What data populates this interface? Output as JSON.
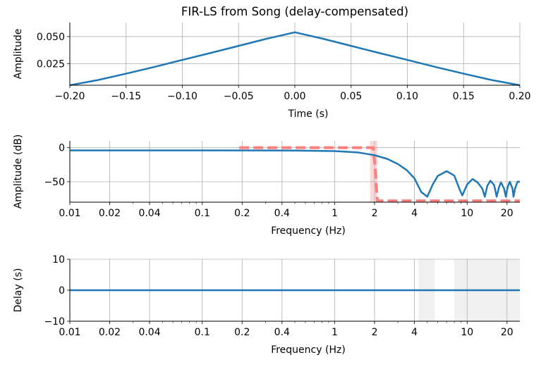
{
  "figure": {
    "title": "FIR-LS from Song (delay-compensated)"
  },
  "colors": {
    "line": "#1f77b4",
    "ideal": "#ff7f7f",
    "grid": "#b0b0b0",
    "shade": "#f0f0f0",
    "shade_pink": "#f8d8d8"
  },
  "chart_data": [
    {
      "type": "line",
      "id": "impulse",
      "xlabel": "Time (s)",
      "ylabel": "Amplitude",
      "xlim": [
        -0.2,
        0.2
      ],
      "ylim": [
        0.005,
        0.063
      ],
      "xticks": [
        -0.2,
        -0.15,
        -0.1,
        -0.05,
        0.0,
        0.05,
        0.1,
        0.15,
        0.2
      ],
      "xtick_labels": [
        "−0.20",
        "−0.15",
        "−0.10",
        "−0.05",
        "0.00",
        "0.05",
        "0.10",
        "0.15",
        "0.20"
      ],
      "yticks": [
        0.025,
        0.05
      ],
      "ytick_labels": [
        "0.025",
        "0.050"
      ],
      "grid": true,
      "series": [
        {
          "x": [
            -0.2,
            -0.175,
            -0.15,
            -0.125,
            -0.1,
            -0.075,
            -0.05,
            -0.025,
            0.0,
            0.025,
            0.05,
            0.075,
            0.1,
            0.125,
            0.15,
            0.175,
            0.2
          ],
          "y": [
            0.0045,
            0.0098,
            0.0157,
            0.0219,
            0.0284,
            0.0348,
            0.0414,
            0.048,
            0.054,
            0.048,
            0.0414,
            0.0348,
            0.0284,
            0.0219,
            0.0157,
            0.0098,
            0.0045
          ]
        }
      ]
    },
    {
      "type": "line",
      "id": "magnitude",
      "xlabel": "Frequency (Hz)",
      "ylabel": "Amplitude (dB)",
      "xscale": "log",
      "xlim": [
        0.01,
        25
      ],
      "ylim": [
        -80,
        10
      ],
      "xticks": [
        0.01,
        0.02,
        0.04,
        0.1,
        0.2,
        0.4,
        1,
        2,
        4,
        10,
        20
      ],
      "xtick_labels": [
        "0.01",
        "0.02",
        "0.04",
        "0.1",
        "0.2",
        "0.4",
        "1",
        "2",
        "4",
        "10",
        "20"
      ],
      "yticks": [
        -50,
        0
      ],
      "ytick_labels": [
        "−50",
        "0"
      ],
      "grid": true,
      "shaded_band_x": [
        1.85,
        2.1
      ],
      "ideal_response": {
        "x": [
          0.19,
          1.95,
          2.0,
          2.1,
          2.5,
          25
        ],
        "y": [
          0,
          0,
          -20,
          -78,
          -78,
          -78
        ]
      },
      "series": [
        {
          "x": [
            0.01,
            0.1,
            0.5,
            1.0,
            1.5,
            2.0,
            2.5,
            3.0,
            3.5,
            4.0,
            4.5,
            5.0,
            5.5,
            6.0,
            7.0,
            8.0,
            8.8,
            9.2,
            10,
            11,
            12,
            13,
            13.6,
            14.2,
            15,
            16,
            16.7,
            17.4,
            18,
            19,
            19.6,
            20.2,
            21,
            22,
            22.4,
            23,
            24,
            25
          ],
          "y": [
            -4,
            -4,
            -4.2,
            -5,
            -7,
            -11,
            -16.5,
            -24,
            -33,
            -45,
            -65,
            -72,
            -54,
            -41.5,
            -34.5,
            -41,
            -62,
            -70,
            -54,
            -46,
            -51,
            -60,
            -72,
            -56,
            -48.5,
            -55,
            -72,
            -58,
            -51,
            -60,
            -72,
            -58,
            -50,
            -60,
            -72,
            -60,
            -50,
            -50
          ]
        }
      ]
    },
    {
      "type": "line",
      "id": "delay",
      "xlabel": "Frequency (Hz)",
      "ylabel": "Delay (s)",
      "xscale": "log",
      "xlim": [
        0.01,
        25
      ],
      "ylim": [
        -10,
        10
      ],
      "xticks": [
        0.01,
        0.02,
        0.04,
        0.1,
        0.2,
        0.4,
        1,
        2,
        4,
        10,
        20
      ],
      "xtick_labels": [
        "0.01",
        "0.02",
        "0.04",
        "0.1",
        "0.2",
        "0.4",
        "1",
        "2",
        "4",
        "10",
        "20"
      ],
      "yticks": [
        -10,
        0,
        10
      ],
      "ytick_labels": [
        "−10",
        "0",
        "10"
      ],
      "grid": true,
      "shaded_bands_x": [
        [
          4.3,
          5.7
        ],
        [
          8.0,
          25
        ]
      ],
      "series": [
        {
          "x": [
            0.01,
            25
          ],
          "y": [
            0,
            0
          ]
        }
      ]
    }
  ]
}
